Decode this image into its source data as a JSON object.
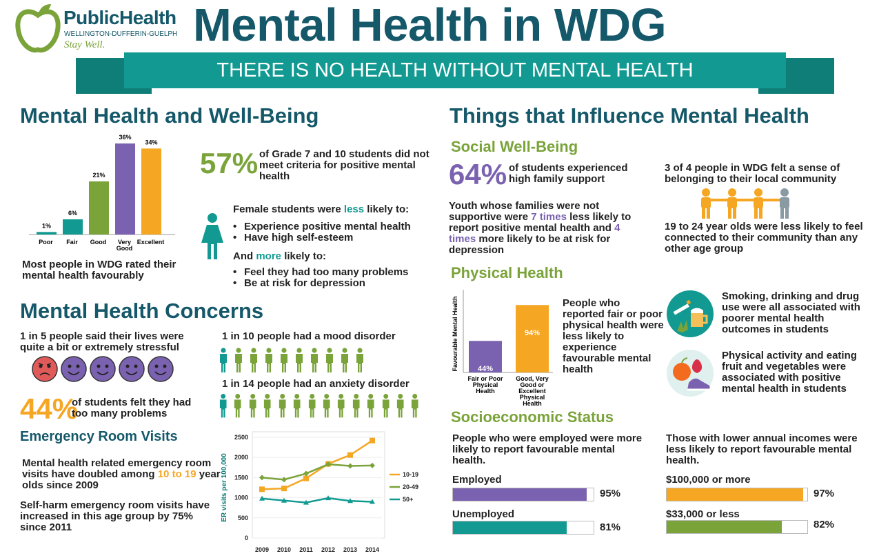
{
  "header": {
    "logo_brand": "PublicHealth",
    "logo_region": "WELLINGTON-DUFFERIN-GUELPH",
    "logo_tagline": "Stay Well.",
    "title": "Mental Health in WDG",
    "banner": "THERE IS NO HEALTH WITHOUT MENTAL HEALTH"
  },
  "colors": {
    "teal_dark": "#14586a",
    "teal": "#129a92",
    "green": "#7aa33a",
    "purple": "#7a62b0",
    "orange": "#f5a623",
    "red": "#e05a5a"
  },
  "wellbeing": {
    "heading": "Mental Health and Well-Being",
    "caption": "Most people in WDG rated their mental health favourably",
    "stat_value": "57%",
    "stat_text": "of Grade 7 and 10 students did not meet criteria for positive mental health",
    "female_intro_a": "Female students were",
    "female_intro_less": "less",
    "female_intro_b": "likely to:",
    "less_items": [
      "Experience positive mental health",
      "Have high self-esteem"
    ],
    "and_a": "And",
    "and_more": "more",
    "and_b": "likely to:",
    "more_items": [
      "Feel they had too many problems",
      "Be at risk for depression"
    ]
  },
  "concerns": {
    "heading": "Mental Health Concerns",
    "stress_text": "1 in 5 people said their lives were quite a bit or extremely stressful",
    "mood_text": "1 in 10 people had a mood disorder",
    "anxiety_text": "1 in 14 people had an anxiety disorder",
    "problems_value": "44%",
    "problems_text": "of students felt they had too many problems"
  },
  "er": {
    "heading": "Emergency Room Visits",
    "text1_a": "Mental health related emergency room visits have doubled among",
    "text1_hl": "10 to 19",
    "text1_b": "year olds since 2009",
    "text2": "Self-harm emergency room visits have increased in this age group by 75% since 2011"
  },
  "influence": {
    "heading": "Things that Influence Mental Health",
    "social_heading": "Social Well-Being",
    "family_value": "64%",
    "family_text": "of students experienced high family support",
    "youth_a": "Youth whose families were not supportive were",
    "youth_hl1": "7 times",
    "youth_b": "less likely to report positive mental health and",
    "youth_hl2": "4 times",
    "youth_c": "more likely to be at risk for depression",
    "belong_text": "3 of 4 people in WDG felt a sense of belonging to their local community",
    "connect_text": "19 to 24 year olds were less likely to feel connected to their community than any other age group",
    "physical_heading": "Physical Health",
    "physical_text": "People who reported fair or poor physical health were less likely to experience favourable mental health",
    "smoking_text": "Smoking, drinking and drug use were all associated with poorer mental health outcomes in students",
    "activity_text": "Physical activity and eating fruit and vegetables were associated with positive mental health in students",
    "socio_heading": "Socioeconomic Status",
    "employed_text": "People who were employed were more likely to report favourable mental health.",
    "income_text": "Those with lower annual incomes were less likely to report favourable mental health.",
    "hbars": [
      {
        "label": "Employed",
        "value_label": "95%",
        "value": 95,
        "color": "#7a62b0"
      },
      {
        "label": "Unemployed",
        "value_label": "81%",
        "value": 81,
        "color": "#129a92"
      },
      {
        "label": "$100,000 or more",
        "value_label": "97%",
        "value": 97,
        "color": "#f5a623"
      },
      {
        "label": "$33,000 or less",
        "value_label": "82%",
        "value": 82,
        "color": "#7aa33a"
      }
    ]
  },
  "chart_data": [
    {
      "type": "bar",
      "categories": [
        "Poor",
        "Fair",
        "Good",
        "Very Good",
        "Excellent"
      ],
      "values": [
        1,
        6,
        21,
        36,
        34
      ],
      "value_labels": [
        "1%",
        "6%",
        "21%",
        "36%",
        "34%"
      ],
      "colors": [
        "#129a92",
        "#129a92",
        "#7aa33a",
        "#7a62b0",
        "#f5a623"
      ],
      "ylim": [
        0,
        36
      ]
    },
    {
      "type": "bar",
      "categories": [
        "Fair or Poor Physical Health",
        "Good, Very Good or Excellent Physical Health"
      ],
      "values": [
        44,
        94
      ],
      "value_labels": [
        "44%",
        "94%"
      ],
      "colors": [
        "#7a62b0",
        "#f5a623"
      ],
      "ylabel": "Favourable Mental Health",
      "ylim": [
        0,
        100
      ]
    },
    {
      "type": "line",
      "x": [
        2009,
        2010,
        2011,
        2012,
        2013,
        2014
      ],
      "ylabel": "ER visits per 100,000",
      "ylim": [
        0,
        2500
      ],
      "yticks": [
        0,
        500,
        1000,
        1500,
        2000,
        2500
      ],
      "series": [
        {
          "name": "10-19",
          "values": [
            1210,
            1230,
            1480,
            1840,
            2060,
            2420
          ],
          "color": "#f5a623"
        },
        {
          "name": "20-49",
          "values": [
            1500,
            1450,
            1600,
            1830,
            1790,
            1800
          ],
          "color": "#7aa33a"
        },
        {
          "name": "50+",
          "values": [
            980,
            930,
            880,
            990,
            920,
            900
          ],
          "color": "#129a92"
        }
      ],
      "legend": "right"
    }
  ]
}
